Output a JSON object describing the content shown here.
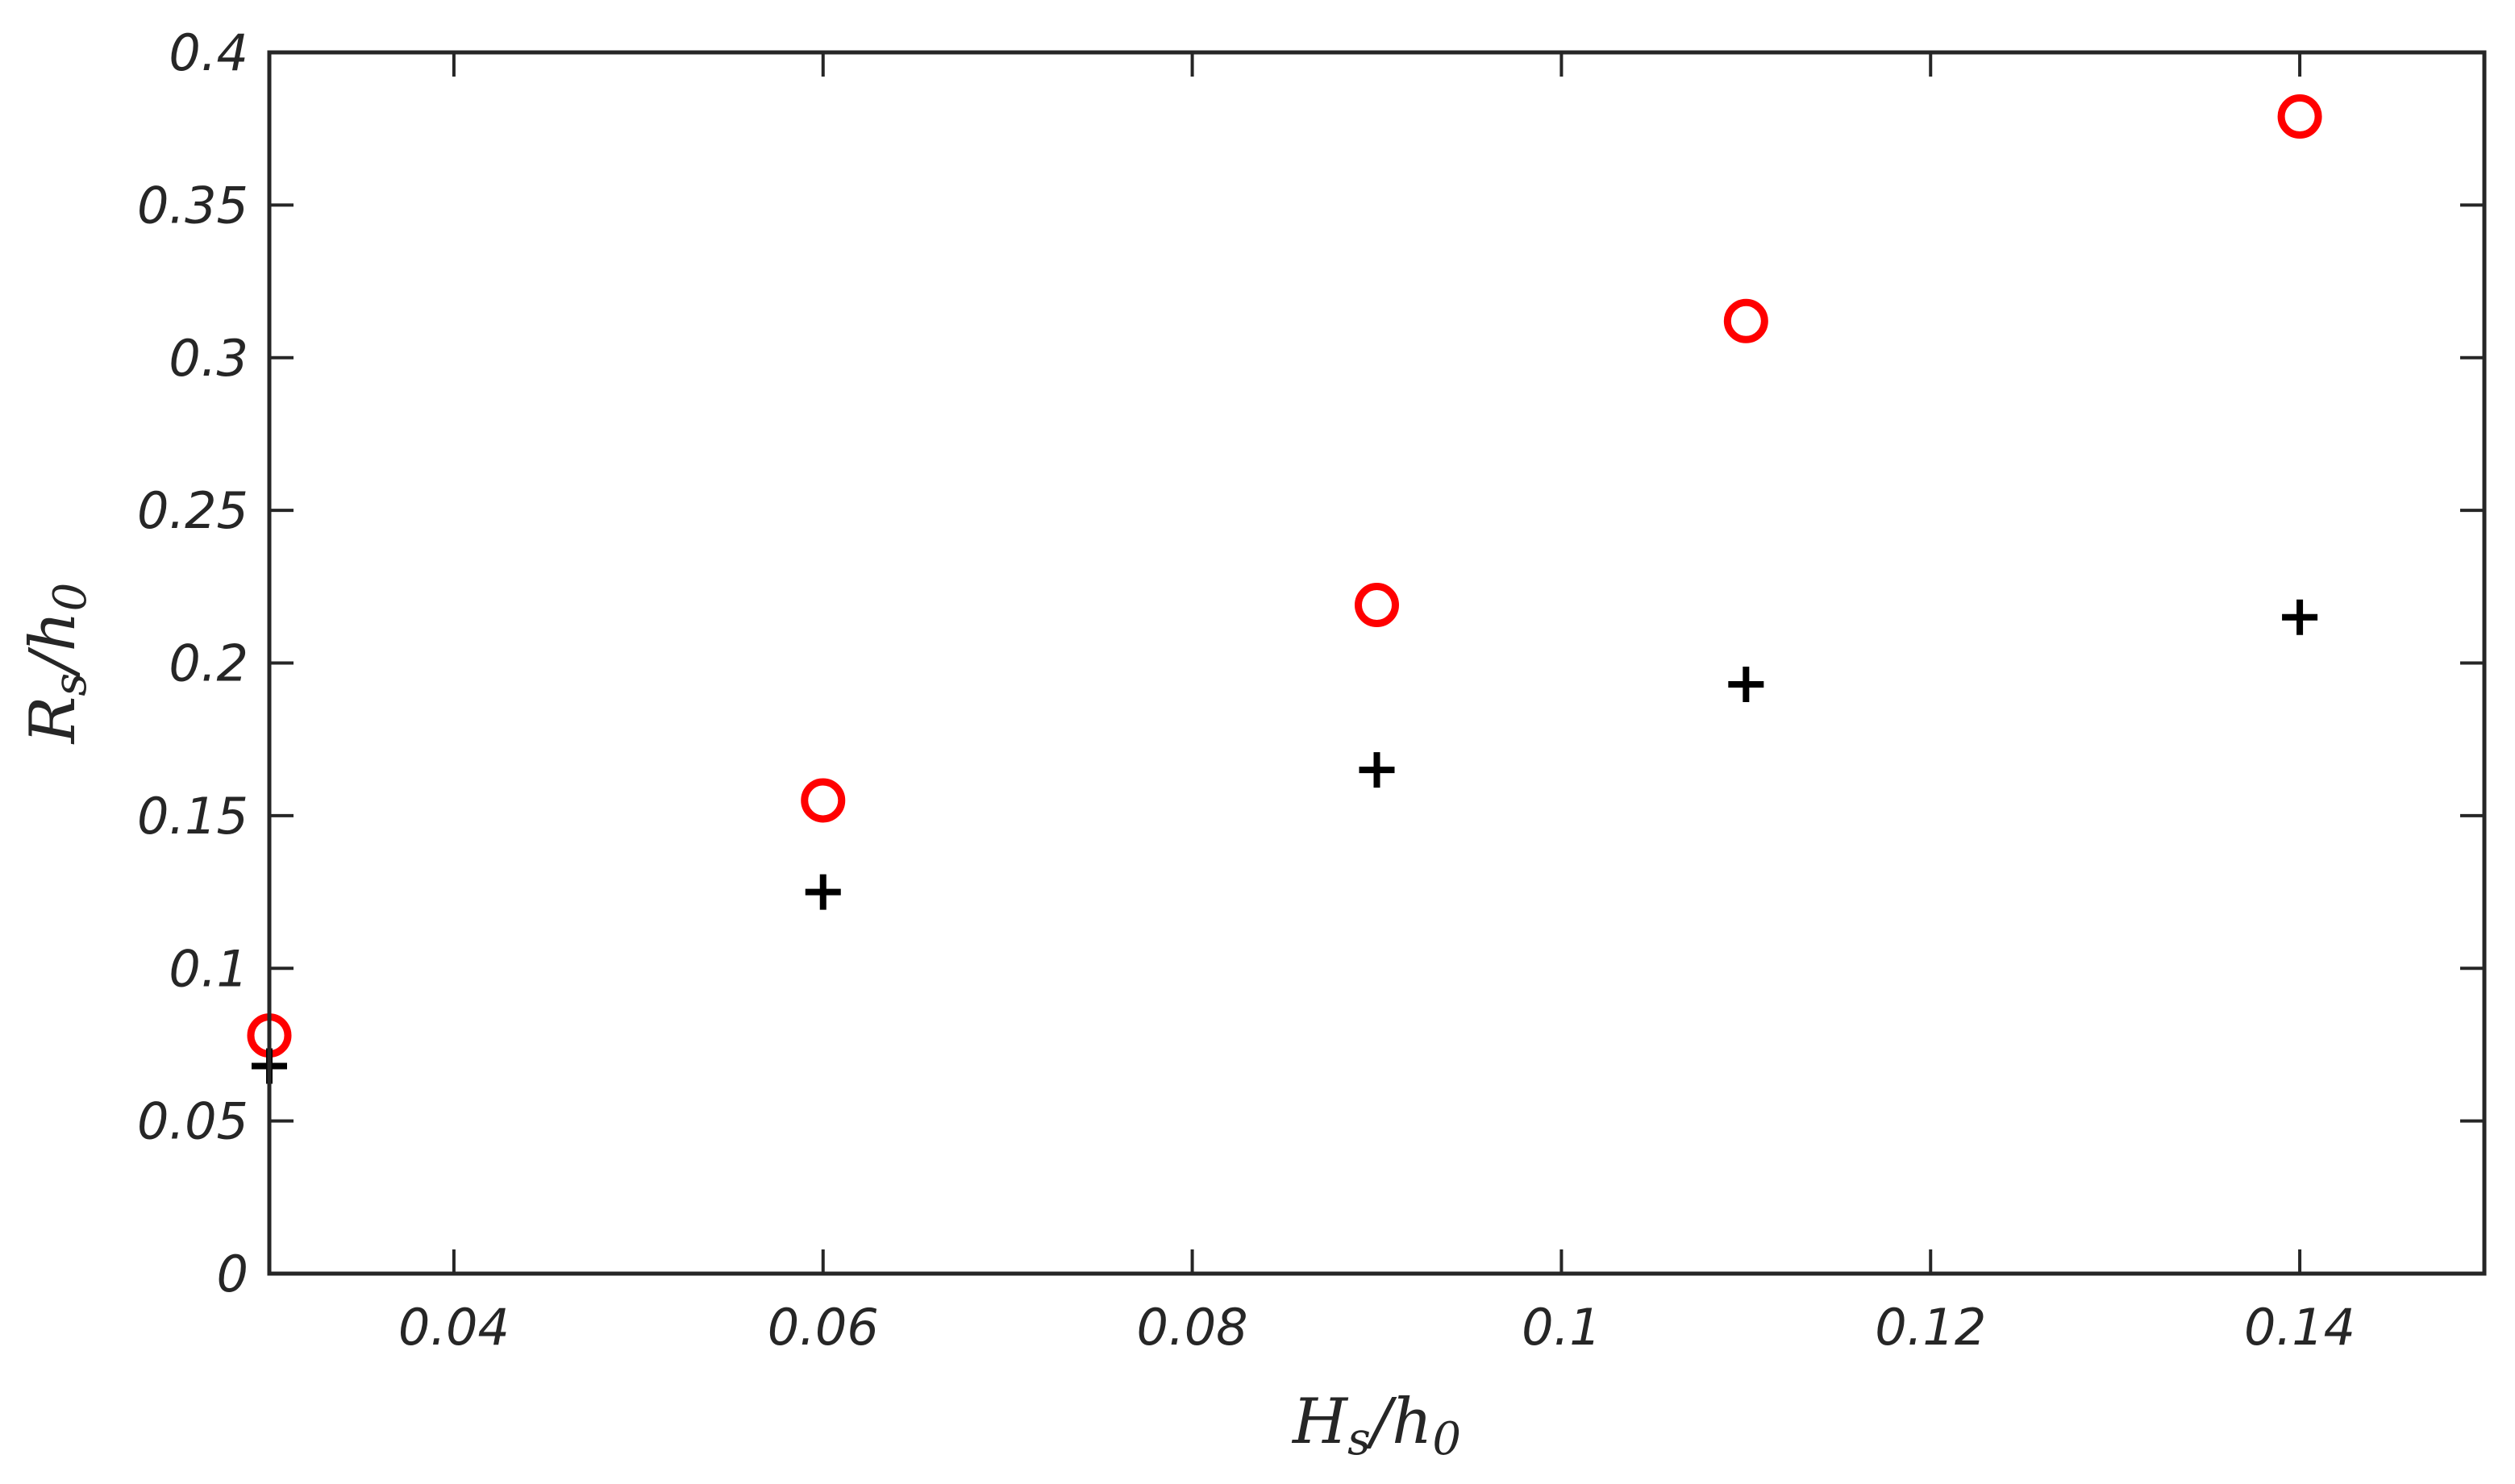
{
  "chart_data": {
    "type": "scatter",
    "xlabel": {
      "main": "H",
      "sub1": "s",
      "mid": "/h",
      "sub2": "0"
    },
    "ylabel": {
      "main": "R",
      "sub1": "s",
      "mid": "/h",
      "sub2": "0"
    },
    "xlim": [
      0.03,
      0.15
    ],
    "ylim": [
      0,
      0.4
    ],
    "xticks": [
      0.04,
      0.06,
      0.08,
      0.1,
      0.12,
      0.14
    ],
    "xtick_labels": [
      "0.04",
      "0.06",
      "0.08",
      "0.1",
      "0.12",
      "0.14"
    ],
    "yticks": [
      0,
      0.05,
      0.1,
      0.15,
      0.2,
      0.25,
      0.3,
      0.35,
      0.4
    ],
    "ytick_labels": [
      "0",
      "0.05",
      "0.1",
      "0.15",
      "0.2",
      "0.25",
      "0.3",
      "0.35",
      "0.4"
    ],
    "grid": false,
    "series": [
      {
        "marker": "circle",
        "color": "#ff0000",
        "x": [
          0.03,
          0.06,
          0.09,
          0.11,
          0.14
        ],
        "y": [
          0.078,
          0.155,
          0.219,
          0.312,
          0.379
        ]
      },
      {
        "marker": "plus",
        "color": "#000000",
        "x": [
          0.03,
          0.06,
          0.09,
          0.11,
          0.14
        ],
        "y": [
          0.068,
          0.125,
          0.165,
          0.193,
          0.215
        ]
      }
    ]
  }
}
